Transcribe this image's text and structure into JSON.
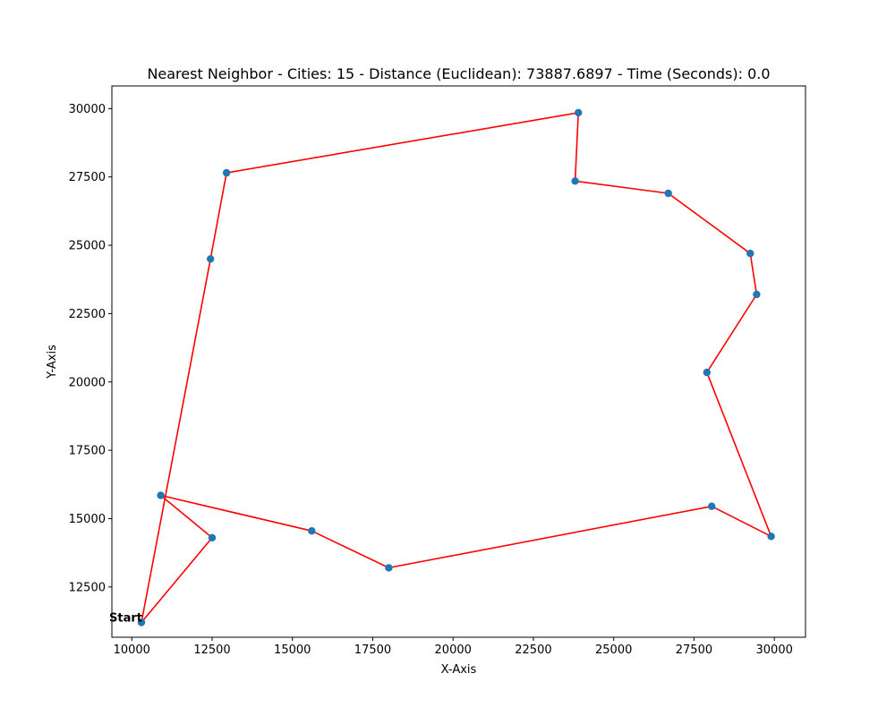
{
  "chart_data": {
    "type": "line",
    "title": "Nearest Neighbor - Cities: 15 - Distance (Euclidean): 73887.6897 - Time (Seconds): 0.0",
    "xlabel": "X-Axis",
    "ylabel": "Y-Axis",
    "xlim": [
      9380,
      30970
    ],
    "ylim": [
      10660,
      30830
    ],
    "xticks": [
      10000,
      12500,
      15000,
      17500,
      20000,
      22500,
      25000,
      27500,
      30000
    ],
    "yticks": [
      12500,
      15000,
      17500,
      20000,
      22500,
      25000,
      27500,
      30000
    ],
    "grid": false,
    "colors": {
      "route": "#ff0000",
      "points": "#1f77b4"
    },
    "route": {
      "x": [
        10300,
        12500,
        10900,
        15600,
        18000,
        28050,
        29900,
        27900,
        29450,
        29250,
        26700,
        23800,
        23900,
        12950,
        12450,
        10300
      ],
      "y": [
        11200,
        14300,
        15850,
        14550,
        13200,
        15450,
        14350,
        20350,
        23200,
        24700,
        26900,
        27350,
        29850,
        27650,
        24500,
        11200
      ]
    },
    "annotation": {
      "text": "Start",
      "x": 10300,
      "y": 11200
    }
  }
}
